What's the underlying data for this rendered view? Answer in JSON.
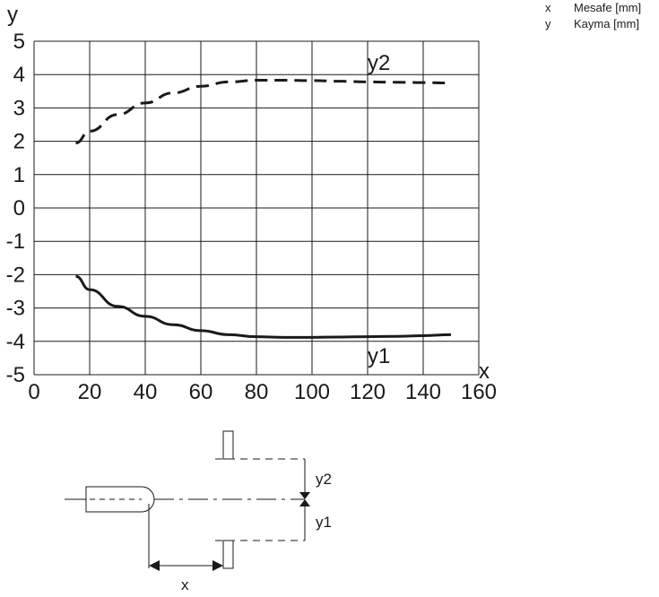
{
  "legend": [
    {
      "key": "x",
      "text": "Mesafe [mm]"
    },
    {
      "key": "y",
      "text": "Kayma [mm]"
    }
  ],
  "chart_data": {
    "type": "line",
    "xlabel": "x",
    "ylabel": "y",
    "xlim": [
      0,
      160
    ],
    "ylim": [
      -5,
      5
    ],
    "xticks": [
      "0",
      "20",
      "40",
      "60",
      "80",
      "100",
      "120",
      "140",
      "160"
    ],
    "yticks": [
      "5",
      "4",
      "3",
      "2",
      "1",
      "0",
      "-1",
      "-2",
      "-3",
      "-4",
      "-5"
    ],
    "grid": true,
    "series": [
      {
        "name": "y2",
        "style": "dashed",
        "x": [
          15,
          20,
          30,
          40,
          50,
          60,
          70,
          80,
          90,
          100,
          110,
          120,
          130,
          140,
          150
        ],
        "y": [
          1.95,
          2.3,
          2.8,
          3.15,
          3.45,
          3.65,
          3.78,
          3.83,
          3.83,
          3.82,
          3.8,
          3.78,
          3.77,
          3.76,
          3.75
        ]
      },
      {
        "name": "y1",
        "style": "solid",
        "x": [
          15,
          20,
          30,
          40,
          50,
          60,
          70,
          80,
          90,
          100,
          110,
          120,
          130,
          140,
          150
        ],
        "y": [
          -2.05,
          -2.45,
          -2.95,
          -3.25,
          -3.5,
          -3.68,
          -3.8,
          -3.86,
          -3.88,
          -3.88,
          -3.87,
          -3.86,
          -3.85,
          -3.83,
          -3.8
        ]
      }
    ]
  },
  "diagram": {
    "x_label": "x",
    "y1_label": "y1",
    "y2_label": "y2"
  }
}
